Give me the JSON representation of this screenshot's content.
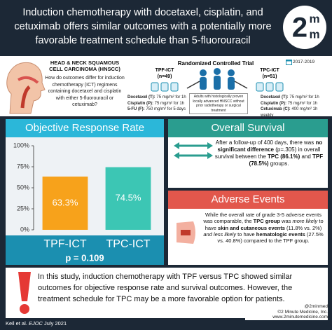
{
  "header": {
    "title": "Induction chemotherapy with docetaxel, cisplatin, and cetuximab offers similar outcomes with a potentially more favorable treatment schedule than 5-fluorouracil",
    "logo": {
      "digit": "2",
      "letters": [
        "m",
        "m"
      ]
    }
  },
  "background": {
    "heading": "HEAD & NECK SQUAMOUS CELL CARCINOMA (HNSCC)",
    "question": "How do outcomes differ for induction chemotherapy (ICT) regimens containing docetaxel and cisplatin with either 5-fluorouracil or cetuximab?"
  },
  "trial": {
    "design": "Randomized Controlled Trial",
    "years": "2017-2019",
    "population": "Adults with histologically proven locally advanced HNSCC without prior radiotherapy or surgical treatment",
    "arms": [
      {
        "name": "TPF-ICT",
        "n": "(n=49)",
        "regimen": [
          {
            "drug": "Docetaxel (T):",
            "dose": "75 mg/m² for 1h"
          },
          {
            "drug": "Cisplatin (P):",
            "dose": "75 mg/m² for 1h"
          },
          {
            "drug": "5-FU (F):",
            "dose": "750 mg/m² for 5 days"
          }
        ]
      },
      {
        "name": "TPC-ICT",
        "n": "(n=51)",
        "regimen": [
          {
            "drug": "Docetaxel (T):",
            "dose": "75 mg/m² for 1h"
          },
          {
            "drug": "Cisplatin (P):",
            "dose": "75 mg/m² for 1h"
          },
          {
            "drug": "Cetuximab (C):",
            "dose": "400 mg/m² 1h weekly"
          }
        ]
      }
    ]
  },
  "chart_data": {
    "type": "bar",
    "title": "Objective Response Rate",
    "categories": [
      "TPF-ICT",
      "TPC-ICT"
    ],
    "values": [
      63.3,
      74.5
    ],
    "value_labels": [
      "63.3%",
      "74.5%"
    ],
    "colors": [
      "#f7a21b",
      "#3cc6b4"
    ],
    "ylim": [
      0,
      100
    ],
    "yticks": [
      {
        "value": 0,
        "label": "0%"
      },
      {
        "value": 25,
        "label": "25%"
      },
      {
        "value": 50,
        "label": "50%"
      },
      {
        "value": 75,
        "label": "75%"
      },
      {
        "value": 100,
        "label": "100%"
      }
    ],
    "annotation": "p = 0.109"
  },
  "overall_survival": {
    "title": "Overall Survival",
    "text": [
      {
        "text": "After a follow-up of 400 days, there was "
      },
      {
        "text": "no significant difference",
        "style": "bold"
      },
      {
        "text": " (p=.305) in overall survival between the "
      },
      {
        "text": "TPC (86.1%)",
        "style": "bold"
      },
      {
        "text": " and "
      },
      {
        "text": "TPF (78.5%)",
        "style": "bold"
      },
      {
        "text": " groups."
      }
    ]
  },
  "adverse_events": {
    "title": "Adverse Events",
    "text": [
      {
        "text": "While the overall rate of grade 3-5 adverse events was comparable, the "
      },
      {
        "text": "TPC group",
        "style": "bold"
      },
      {
        "text": " was "
      },
      {
        "text": "more likely",
        "style": "italic"
      },
      {
        "text": " to have "
      },
      {
        "text": "skin and cutaneous events",
        "style": "bold"
      },
      {
        "text": " (11.8% vs. 2%) "
      },
      {
        "text": "and less likely",
        "style": "italic"
      },
      {
        "text": " to have "
      },
      {
        "text": "hematologic events",
        "style": "bold"
      },
      {
        "text": " (27.5% vs. 40.8%) compared to the TPF group."
      }
    ]
  },
  "conclusion": "In this study, induction chemotherapy with TPF versus TPC showed similar outcomes for objective response rate and survival outcomes. However, the treatment schedule for TPC may be a more favorable option for patients.",
  "footer": {
    "citation": [
      {
        "text": "Keil et al. "
      },
      {
        "text": "EJOC",
        "style": "italic"
      },
      {
        "text": " July 2021"
      }
    ],
    "handle": "@2minmed",
    "copyright": "©2 Minute Medicine, Inc.",
    "website": "www.2minutemedicine.com"
  }
}
